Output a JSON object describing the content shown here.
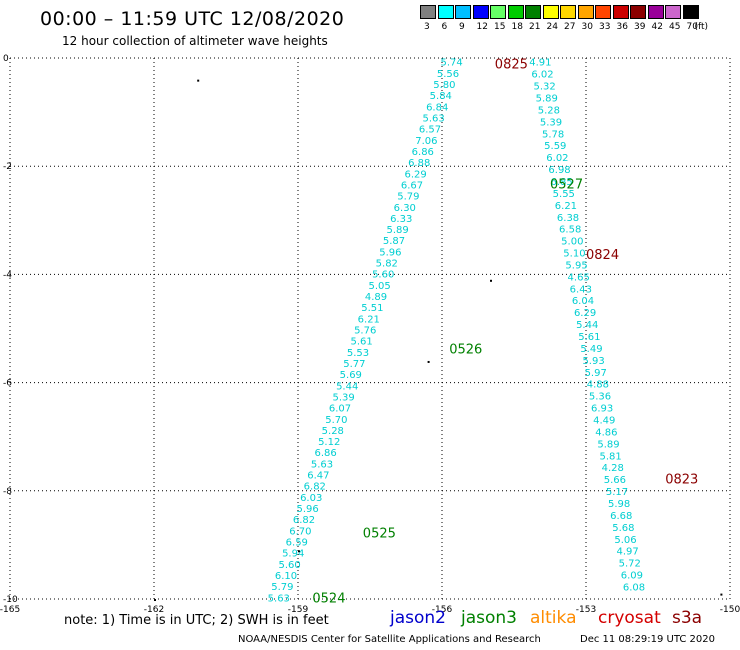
{
  "header": {
    "title": "00:00 – 11:59 UTC 12/08/2020",
    "subtitle": "12 hour collection of altimeter wave heights"
  },
  "legend": {
    "unit": "(ft)",
    "bins": [
      {
        "label": "3",
        "color": "#808080"
      },
      {
        "label": "6",
        "color": "#00ffff"
      },
      {
        "label": "9",
        "color": "#00bfff"
      },
      {
        "label": "12",
        "color": "#0000ff"
      },
      {
        "label": "15",
        "color": "#66ff66"
      },
      {
        "label": "18",
        "color": "#00cc00"
      },
      {
        "label": "21",
        "color": "#008000"
      },
      {
        "label": "24",
        "color": "#ffff00"
      },
      {
        "label": "27",
        "color": "#ffd700"
      },
      {
        "label": "30",
        "color": "#ffa500"
      },
      {
        "label": "33",
        "color": "#ff4500"
      },
      {
        "label": "36",
        "color": "#cc0000"
      },
      {
        "label": "39",
        "color": "#8b0000"
      },
      {
        "label": "42",
        "color": "#990099"
      },
      {
        "label": "45",
        "color": "#cc66cc"
      },
      {
        "label": "70",
        "color": "#000000"
      }
    ]
  },
  "axes": {
    "x_labels": [
      "-165",
      "-162",
      "-159",
      "-156",
      "-153",
      "-150"
    ],
    "y_labels": [
      "0",
      "-2",
      "-4",
      "-6",
      "-8",
      "-10"
    ]
  },
  "chart_data": {
    "type": "scatter",
    "xlim": [
      -165,
      -150
    ],
    "ylim": [
      -10,
      0
    ],
    "grid": true,
    "tracks": [
      {
        "name": "track-a",
        "color": "#00ced1",
        "lon_start": -155.8,
        "lat_start": -0.05,
        "lon_end": -159.4,
        "lat_end": -9.95,
        "values": [
          "5.74",
          "5.56",
          "5.80",
          "5.84",
          "6.84",
          "5.63",
          "6.57",
          "7.06",
          "6.86",
          "6.88",
          "6.29",
          "6.67",
          "5.79",
          "6.30",
          "6.33",
          "5.89",
          "5.87",
          "5.96",
          "5.82",
          "5.60",
          "5.05",
          "4.89",
          "5.51",
          "6.21",
          "5.76",
          "5.61",
          "5.53",
          "5.77",
          "5.69",
          "5.44",
          "5.39",
          "6.07",
          "5.70",
          "5.28",
          "5.12",
          "6.86",
          "5.63",
          "6.47",
          "6.82",
          "6.03",
          "5.96",
          "6.82",
          "6.70",
          "6.59",
          "5.94",
          "5.60",
          "6.10",
          "5.79",
          "5.63"
        ]
      },
      {
        "name": "track-b",
        "color": "#00ced1",
        "lon_start": -153.95,
        "lat_start": -0.05,
        "lon_end": -152.0,
        "lat_end": -9.75,
        "values": [
          "4.91",
          "6.02",
          "5.32",
          "5.89",
          "5.28",
          "5.39",
          "5.78",
          "5.59",
          "6.02",
          "6.98",
          "6.85",
          "5.55",
          "6.21",
          "6.38",
          "6.58",
          "5.00",
          "5.10",
          "5.95",
          "4.65",
          "6.43",
          "6.04",
          "6.29",
          "5.44",
          "5.61",
          "5.49",
          "5.93",
          "5.97",
          "4.88",
          "5.36",
          "6.93",
          "4.49",
          "4.86",
          "5.89",
          "5.81",
          "4.28",
          "5.66",
          "5.17",
          "5.98",
          "6.68",
          "5.68",
          "5.06",
          "4.97",
          "5.72",
          "6.09",
          "6.08"
        ]
      }
    ],
    "time_labels": [
      {
        "text": "0825",
        "lon": -154.9,
        "lat": -0.08,
        "color": "#8b0000"
      },
      {
        "text": "0527",
        "lon": -153.75,
        "lat": -2.3,
        "color": "#008000"
      },
      {
        "text": "0824",
        "lon": -153.0,
        "lat": -3.6,
        "color": "#8b0000"
      },
      {
        "text": "0526",
        "lon": -155.85,
        "lat": -5.35,
        "color": "#008000"
      },
      {
        "text": "0823",
        "lon": -151.35,
        "lat": -7.75,
        "color": "#8b0000"
      },
      {
        "text": "0525",
        "lon": -157.65,
        "lat": -8.75,
        "color": "#008000"
      },
      {
        "text": "0524",
        "lon": -158.7,
        "lat": -9.95,
        "color": "#008000"
      }
    ]
  },
  "footer": {
    "note": "note:  1) Time is in UTC;  2) SWH is in feet",
    "satellites": {
      "jason2": "jason2",
      "jason3": "jason3",
      "altika": "altika",
      "cryosat": "cryosat",
      "s3a": "s3a"
    },
    "credit": "NOAA/NESDIS Center for Satellite Applications and Research",
    "timestamp": "Dec 11 08:29:19 UTC 2020"
  }
}
